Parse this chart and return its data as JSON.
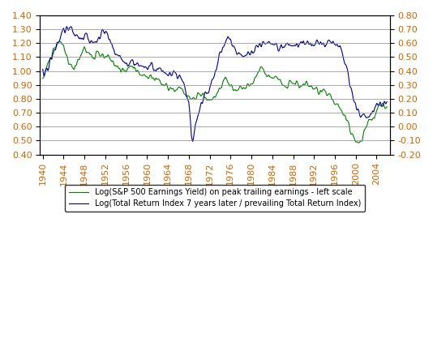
{
  "left_ylim": [
    0.4,
    1.4
  ],
  "right_ylim": [
    -0.2,
    0.8
  ],
  "left_yticks": [
    0.4,
    0.5,
    0.6,
    0.7,
    0.8,
    0.9,
    1.0,
    1.1,
    1.2,
    1.3,
    1.4
  ],
  "right_yticks": [
    -0.2,
    -0.1,
    0.0,
    0.1,
    0.2,
    0.3,
    0.4,
    0.5,
    0.6,
    0.7,
    0.8
  ],
  "xticks": [
    1940,
    1944,
    1948,
    1952,
    1956,
    1960,
    1964,
    1968,
    1972,
    1976,
    1980,
    1984,
    1988,
    1992,
    1996,
    2000,
    2004
  ],
  "xlim": [
    1939.5,
    2006.5
  ],
  "green_color": "#008000",
  "blue_color": "#00008B",
  "legend_items": [
    "Log(S&P 500 Earnings Yield) on peak trailing earnings - left scale",
    "Log(Total Return Index 7 years later / prevailing Total Return Index)"
  ]
}
